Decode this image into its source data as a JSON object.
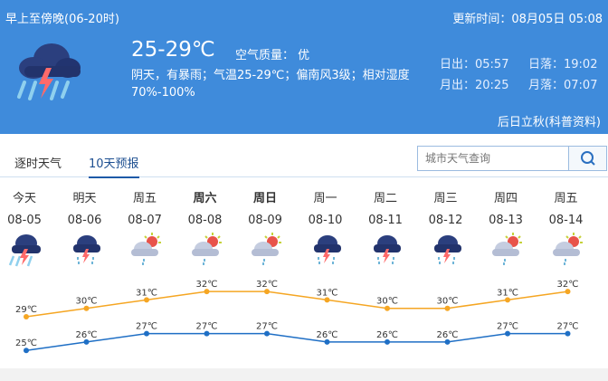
{
  "header": {
    "period": "早上至傍晚(06-20时)",
    "update_time": "更新时间：08月05日 05:08",
    "temp_range": "25-29℃",
    "air_quality": "空气质量：  优",
    "description": "阴天，有暴雨；气温25-29℃；偏南风3级；相对湿度70%-100%",
    "sunrise": "日出：05:57",
    "sunset": "日落：19:02",
    "moonrise": "月出：20:25",
    "moonset": "月落：07:07",
    "solar_term": "后日立秋(科普资料)",
    "icon": "heavy-thunderstorm-rain-icon"
  },
  "tabs": [
    {
      "label": "逐时天气",
      "active": false
    },
    {
      "label": "10天预报",
      "active": true
    }
  ],
  "search": {
    "placeholder": "城市天气查询",
    "icon": "search-icon"
  },
  "forecast": [
    {
      "weekday": "今天",
      "date": "08-05",
      "icon": "heavy-storm",
      "high": 29,
      "low": 25,
      "bold": false
    },
    {
      "weekday": "明天",
      "date": "08-06",
      "icon": "thunderstorm",
      "high": 30,
      "low": 26,
      "bold": false
    },
    {
      "weekday": "周五",
      "date": "08-07",
      "icon": "shower",
      "high": 31,
      "low": 27,
      "bold": false
    },
    {
      "weekday": "周六",
      "date": "08-08",
      "icon": "shower",
      "high": 32,
      "low": 27,
      "bold": true
    },
    {
      "weekday": "周日",
      "date": "08-09",
      "icon": "shower",
      "high": 32,
      "low": 27,
      "bold": true
    },
    {
      "weekday": "周一",
      "date": "08-10",
      "icon": "thunderstorm",
      "high": 31,
      "low": 26,
      "bold": false
    },
    {
      "weekday": "周二",
      "date": "08-11",
      "icon": "thunderstorm",
      "high": 30,
      "low": 26,
      "bold": false
    },
    {
      "weekday": "周三",
      "date": "08-12",
      "icon": "thunderstorm",
      "high": 30,
      "low": 26,
      "bold": false
    },
    {
      "weekday": "周四",
      "date": "08-13",
      "icon": "shower",
      "high": 31,
      "low": 27,
      "bold": false
    },
    {
      "weekday": "周五",
      "date": "08-14",
      "icon": "shower",
      "high": 32,
      "low": 27,
      "bold": false
    }
  ],
  "colors": {
    "header_bg": "#3f8bdb",
    "high_line": "#f5a623",
    "low_line": "#1f6fc5"
  },
  "unit": "℃"
}
